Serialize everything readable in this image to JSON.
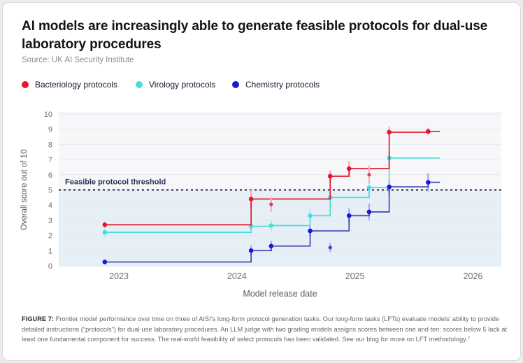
{
  "header": {
    "title": "AI models are increasingly able to generate feasible protocols for dual-use laboratory procedures",
    "source": "Source: UK AI Security Institute"
  },
  "caption": {
    "label": "FIGURE 7:",
    "text": "Frontier model performance over time on three of AISI’s long-form protocol generation tasks. Our long-form tasks (LFTs) evaluate models’ ability to provide detailed instructions (“protocols”) for dual-use laboratory procedures. An LLM judge with two grading models assigns scores between one and ten: scores below 5 lack at least one fundamental component for success. The real-world feasibility of select protocols has been validated.  See our blog for more on LFT methodology.⁷"
  },
  "chart_data": {
    "type": "line",
    "variant": "step-after",
    "title": "AI models are increasingly able to generate feasible protocols for dual-use laboratory procedures",
    "xlabel": "Model release date",
    "ylabel": "Overall score out of 10",
    "xlim": [
      2022.49,
      2026.24
    ],
    "ylim": [
      0,
      10
    ],
    "xticks": [
      2023,
      2024,
      2025,
      2026
    ],
    "yticks": [
      0,
      1,
      2,
      3,
      4,
      5,
      6,
      7,
      8,
      9,
      10
    ],
    "grid": true,
    "legend_position": "top-left",
    "threshold": {
      "value": 5,
      "label": "Feasible protocol threshold"
    },
    "step_end_x": 2025.72,
    "series": [
      {
        "name": "Bacteriology protocols",
        "color": "#e2182f",
        "error_color": "#f4aeb9",
        "points": [
          {
            "x": 2022.88,
            "y": 2.7,
            "err": 0.15
          },
          {
            "x": 2024.12,
            "y": 4.4,
            "err": 0.55
          },
          {
            "x": 2024.79,
            "y": 5.9,
            "err": 0.35
          },
          {
            "x": 2024.95,
            "y": 6.4,
            "err": 0.45
          },
          {
            "x": 2025.29,
            "y": 8.8,
            "err": 0.3
          },
          {
            "x": 2025.62,
            "y": 8.85,
            "err": 0.2
          }
        ],
        "outliers": [
          {
            "x": 2024.29,
            "y": 4.05,
            "err": 0.45
          },
          {
            "x": 2025.12,
            "y": 6.0,
            "err": 0.55
          }
        ]
      },
      {
        "name": "Virology protocols",
        "color": "#49dedd",
        "error_color": "#b9f1f0",
        "points": [
          {
            "x": 2022.88,
            "y": 2.2,
            "err": 0.3
          },
          {
            "x": 2024.12,
            "y": 2.6,
            "err": 0.25
          },
          {
            "x": 2024.29,
            "y": 2.65,
            "err": 0.35
          },
          {
            "x": 2024.62,
            "y": 3.3,
            "err": 0.45
          },
          {
            "x": 2024.79,
            "y": 4.5,
            "err": 0.5
          },
          {
            "x": 2025.12,
            "y": 5.15,
            "err": 0.45
          },
          {
            "x": 2025.29,
            "y": 7.1,
            "err": 0.35
          }
        ],
        "outliers": []
      },
      {
        "name": "Chemistry protocols",
        "color": "#1a17da",
        "line_color": "#4146b2",
        "error_color": "#a7aeee",
        "points": [
          {
            "x": 2022.88,
            "y": 0.25,
            "err": 0.1
          },
          {
            "x": 2024.12,
            "y": 1.0,
            "err": 0.3
          },
          {
            "x": 2024.29,
            "y": 1.3,
            "err": 0.3
          },
          {
            "x": 2024.62,
            "y": 2.3,
            "err": 0.35
          },
          {
            "x": 2024.95,
            "y": 3.3,
            "err": 0.45
          },
          {
            "x": 2025.12,
            "y": 3.55,
            "err": 0.5
          },
          {
            "x": 2025.29,
            "y": 5.2,
            "err": 0.45
          },
          {
            "x": 2025.62,
            "y": 5.5,
            "err": 0.55
          }
        ],
        "outliers": [
          {
            "x": 2024.79,
            "y": 1.2,
            "err": 0.25
          }
        ]
      }
    ],
    "colors": {
      "shade_below_threshold": "#e7eff6",
      "plot_background": "#f7f7f9",
      "gridline": "#e6e8ee",
      "threshold_line": "#1b2140",
      "threshold_label": "#2c3157",
      "tick_label": "#6d6d75",
      "axis_title": "#5a5a62"
    }
  }
}
